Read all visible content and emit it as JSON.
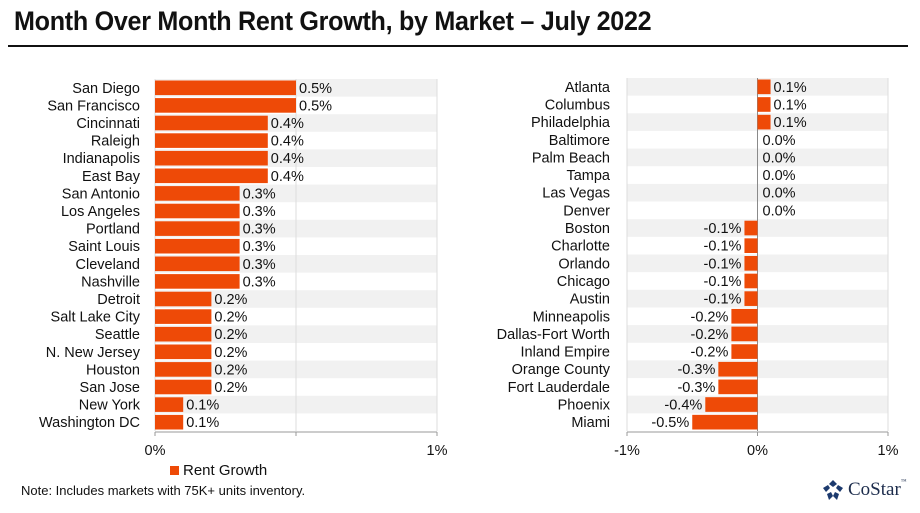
{
  "title": "Month Over Month Rent Growth, by Market – July 2022",
  "note": "Note: Includes markets with 75K+ units inventory.",
  "legend": {
    "label": "Rent Growth",
    "color": "#ee4a07"
  },
  "logo": {
    "name": "CoStar",
    "tm": "™"
  },
  "colors": {
    "bar": "#ee4a07",
    "band": "#f1f1f1",
    "axis": "#999999",
    "grid": "#dddddd"
  },
  "chart_data": [
    {
      "type": "bar",
      "orientation": "horizontal",
      "title": "",
      "series": [
        {
          "name": "Rent Growth",
          "unit": "%"
        }
      ],
      "categories": [
        "San Diego",
        "San Francisco",
        "Cincinnati",
        "Raleigh",
        "Indianapolis",
        "East Bay",
        "San Antonio",
        "Los Angeles",
        "Portland",
        "Saint Louis",
        "Cleveland",
        "Nashville",
        "Detroit",
        "Salt Lake City",
        "Seattle",
        "N. New Jersey",
        "Houston",
        "San Jose",
        "New York",
        "Washington DC"
      ],
      "values": [
        0.5,
        0.5,
        0.4,
        0.4,
        0.4,
        0.4,
        0.3,
        0.3,
        0.3,
        0.3,
        0.3,
        0.3,
        0.2,
        0.2,
        0.2,
        0.2,
        0.2,
        0.2,
        0.1,
        0.1
      ],
      "labels": [
        "0.5%",
        "0.5%",
        "0.4%",
        "0.4%",
        "0.4%",
        "0.4%",
        "0.3%",
        "0.3%",
        "0.3%",
        "0.3%",
        "0.3%",
        "0.3%",
        "0.2%",
        "0.2%",
        "0.2%",
        "0.2%",
        "0.2%",
        "0.2%",
        "0.1%",
        "0.1%"
      ],
      "xlim": [
        0,
        1
      ],
      "xticks": [
        0,
        1
      ],
      "xtick_labels": [
        "0%",
        "1%"
      ],
      "grid": true,
      "legend": "bottom"
    },
    {
      "type": "bar",
      "orientation": "horizontal",
      "title": "",
      "series": [
        {
          "name": "Rent Growth",
          "unit": "%"
        }
      ],
      "categories": [
        "Atlanta",
        "Columbus",
        "Philadelphia",
        "Baltimore",
        "Palm Beach",
        "Tampa",
        "Las Vegas",
        "Denver",
        "Boston",
        "Charlotte",
        "Orlando",
        "Chicago",
        "Austin",
        "Minneapolis",
        "Dallas-Fort Worth",
        "Inland Empire",
        "Orange County",
        "Fort Lauderdale",
        "Phoenix",
        "Miami"
      ],
      "values": [
        0.1,
        0.1,
        0.1,
        0.0,
        0.0,
        0.0,
        0.0,
        0.0,
        -0.1,
        -0.1,
        -0.1,
        -0.1,
        -0.1,
        -0.2,
        -0.2,
        -0.2,
        -0.3,
        -0.3,
        -0.4,
        -0.5
      ],
      "labels": [
        "0.1%",
        "0.1%",
        "0.1%",
        "0.0%",
        "0.0%",
        "0.0%",
        "0.0%",
        "0.0%",
        "-0.1%",
        "-0.1%",
        "-0.1%",
        "-0.1%",
        "-0.1%",
        "-0.2%",
        "-0.2%",
        "-0.2%",
        "-0.3%",
        "-0.3%",
        "-0.4%",
        "-0.5%"
      ],
      "xlim": [
        -1,
        1
      ],
      "xticks": [
        -1,
        0,
        1
      ],
      "xtick_labels": [
        "-1%",
        "0%",
        "1%"
      ],
      "grid": true,
      "legend": "none"
    }
  ]
}
